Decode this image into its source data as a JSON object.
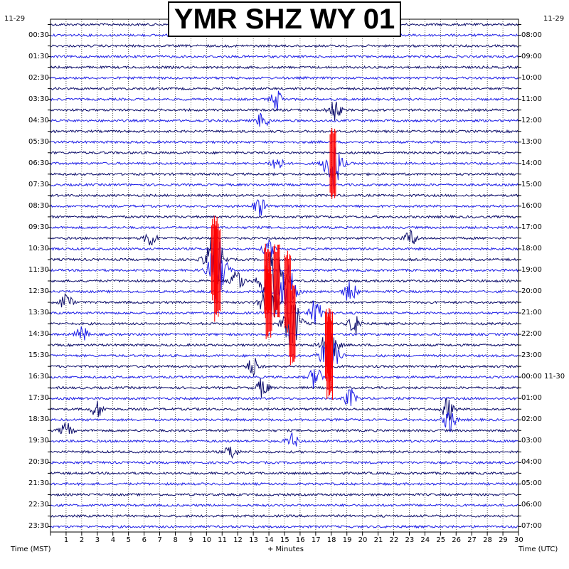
{
  "chart_data": {
    "type": "heatmap",
    "title": "YMR SHZ WY 01",
    "left_date": "11-29",
    "right_date": "11-29",
    "xlabel": "+ Minutes",
    "left_axis_label": "Time (MST)",
    "right_axis_label": "Time (UTC)",
    "x_ticks": [
      "1",
      "2",
      "3",
      "4",
      "5",
      "6",
      "7",
      "8",
      "9",
      "10",
      "11",
      "12",
      "13",
      "14",
      "15",
      "16",
      "17",
      "18",
      "19",
      "20",
      "21",
      "22",
      "23",
      "24",
      "25",
      "26",
      "27",
      "28",
      "29",
      "30"
    ],
    "xlim": [
      0,
      30
    ],
    "left_ticks": [
      "00:30",
      "01:30",
      "02:30",
      "03:30",
      "04:30",
      "05:30",
      "06:30",
      "07:30",
      "08:30",
      "09:30",
      "10:30",
      "11:30",
      "12:30",
      "13:30",
      "14:30",
      "15:30",
      "16:30",
      "17:30",
      "18:30",
      "19:30",
      "20:30",
      "21:30",
      "22:30",
      "23:30"
    ],
    "right_ticks": [
      "08:00",
      "09:00",
      "10:00",
      "11:00",
      "12:00",
      "13:00",
      "14:00",
      "15:00",
      "16:00",
      "17:00",
      "18:00",
      "19:00",
      "20:00",
      "21:00",
      "22:00",
      "23:00",
      "00:00 11-30",
      "01:00",
      "02:00",
      "03:00",
      "04:00",
      "05:00",
      "06:00",
      "07:00"
    ],
    "trace_count": 48,
    "minutes_per_trace": 30,
    "colors": {
      "dark_trace": "#0d0d6b",
      "light_trace": "#1f1fe6",
      "clipped": "#ff0000",
      "grid": "#000000"
    },
    "events": [
      {
        "trace": 22,
        "minute": 10.5,
        "amp": 3.0,
        "clipped": true
      },
      {
        "trace": 23,
        "minute": 10.7,
        "amp": 3.5,
        "clipped": true
      },
      {
        "trace": 24,
        "minute": 13.9,
        "amp": 2.5,
        "clipped": true
      },
      {
        "trace": 24,
        "minute": 14.5,
        "amp": 2.5,
        "clipped": true
      },
      {
        "trace": 25,
        "minute": 15.2,
        "amp": 2.8,
        "clipped": true
      },
      {
        "trace": 26,
        "minute": 14.0,
        "amp": 2.5,
        "clipped": true
      },
      {
        "trace": 28,
        "minute": 15.5,
        "amp": 2.8,
        "clipped": true
      },
      {
        "trace": 30,
        "minute": 17.8,
        "amp": 2.5,
        "clipped": true
      },
      {
        "trace": 31,
        "minute": 17.9,
        "amp": 3.0,
        "clipped": true
      },
      {
        "trace": 13,
        "minute": 18.1,
        "amp": 2.6,
        "clipped": true
      },
      {
        "trace": 8,
        "minute": 18.2,
        "amp": 1.2,
        "clipped": false
      },
      {
        "trace": 7,
        "minute": 14.5,
        "amp": 1.0,
        "clipped": false
      },
      {
        "trace": 9,
        "minute": 13.6,
        "amp": 0.9,
        "clipped": false
      },
      {
        "trace": 13,
        "minute": 14.5,
        "amp": 0.9,
        "clipped": false
      },
      {
        "trace": 17,
        "minute": 13.4,
        "amp": 1.0,
        "clipped": false
      },
      {
        "trace": 20,
        "minute": 6.4,
        "amp": 0.9,
        "clipped": false
      },
      {
        "trace": 20,
        "minute": 23.1,
        "amp": 0.9,
        "clipped": false
      },
      {
        "trace": 21,
        "minute": 14.0,
        "amp": 0.9,
        "clipped": false
      },
      {
        "trace": 24,
        "minute": 12.0,
        "amp": 1.3,
        "clipped": false
      },
      {
        "trace": 25,
        "minute": 19.2,
        "amp": 1.3,
        "clipped": false
      },
      {
        "trace": 26,
        "minute": 1.0,
        "amp": 1.0,
        "clipped": false
      },
      {
        "trace": 27,
        "minute": 17.0,
        "amp": 1.4,
        "clipped": false
      },
      {
        "trace": 28,
        "minute": 19.5,
        "amp": 1.2,
        "clipped": false
      },
      {
        "trace": 29,
        "minute": 2.0,
        "amp": 0.9,
        "clipped": false
      },
      {
        "trace": 32,
        "minute": 13.0,
        "amp": 1.0,
        "clipped": false
      },
      {
        "trace": 33,
        "minute": 17.0,
        "amp": 1.4,
        "clipped": false
      },
      {
        "trace": 34,
        "minute": 13.6,
        "amp": 1.0,
        "clipped": false
      },
      {
        "trace": 35,
        "minute": 19.2,
        "amp": 1.0,
        "clipped": false
      },
      {
        "trace": 36,
        "minute": 3.0,
        "amp": 0.9,
        "clipped": false
      },
      {
        "trace": 36,
        "minute": 25.5,
        "amp": 1.2,
        "clipped": false
      },
      {
        "trace": 37,
        "minute": 25.6,
        "amp": 1.3,
        "clipped": false
      },
      {
        "trace": 38,
        "minute": 1.0,
        "amp": 0.8,
        "clipped": false
      },
      {
        "trace": 39,
        "minute": 15.5,
        "amp": 0.8,
        "clipped": false
      },
      {
        "trace": 40,
        "minute": 11.6,
        "amp": 0.8,
        "clipped": false
      }
    ]
  }
}
